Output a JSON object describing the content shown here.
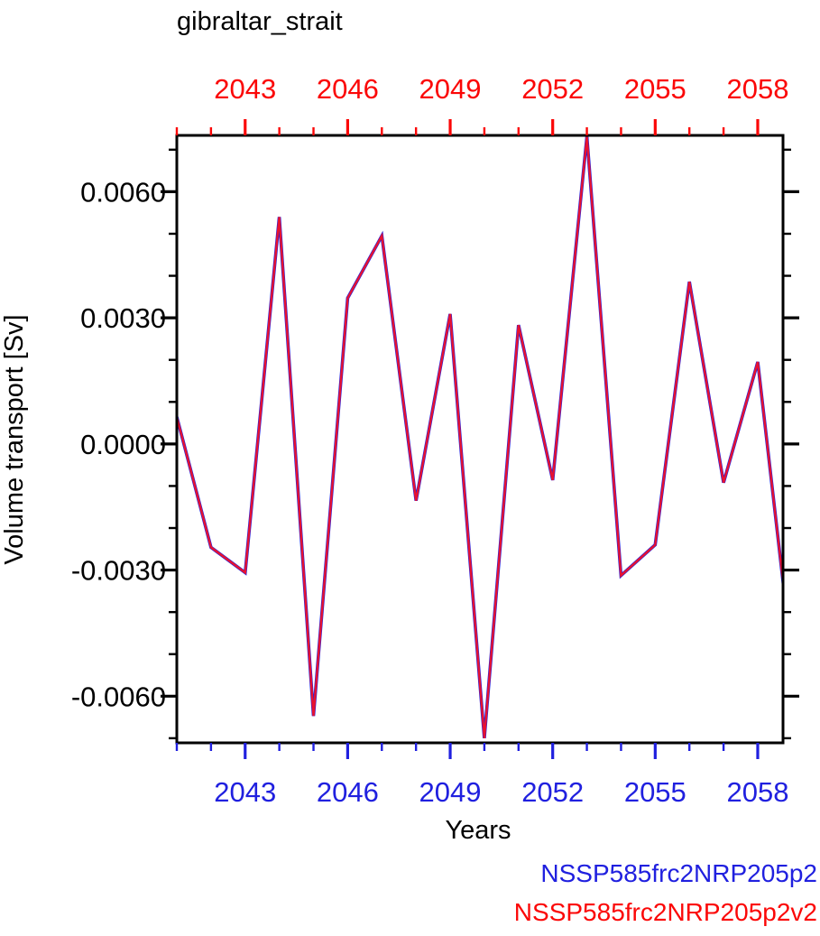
{
  "chart_data": {
    "type": "line",
    "title": "gibraltar_strait",
    "xlabel": "Years",
    "ylabel": "Volume transport [Sv]",
    "x": [
      2041,
      2042,
      2043,
      2044,
      2045,
      2046,
      2047,
      2048,
      2049,
      2050,
      2051,
      2052,
      2053,
      2054,
      2055,
      2056,
      2057,
      2058,
      2059
    ],
    "series": [
      {
        "name": "NSSP585frc2NRP205p2",
        "color": "#2020df",
        "values": [
          0.00064,
          -0.00246,
          -0.00306,
          0.0054,
          -0.00647,
          0.00347,
          0.00495,
          -0.00135,
          0.00309,
          -0.007,
          0.00283,
          -0.00086,
          0.00731,
          -0.00313,
          -0.0024,
          0.00386,
          -0.00092,
          0.00195,
          -0.0051
        ]
      },
      {
        "name": "NSSP585frc2NRP205p2v2",
        "color": "#e81230",
        "values": [
          0.00064,
          -0.00246,
          -0.00306,
          0.0054,
          -0.00647,
          0.00347,
          0.00495,
          -0.00135,
          0.00309,
          -0.007,
          0.00283,
          -0.00086,
          0.00731,
          -0.00313,
          -0.0024,
          0.00386,
          -0.00092,
          0.00195,
          -0.0051
        ]
      }
    ],
    "xlim": [
      2041,
      2058.74
    ],
    "ylim": [
      -0.00711,
      0.00734
    ],
    "x_major_ticks": [
      2043,
      2046,
      2049,
      2052,
      2055,
      2058
    ],
    "x_major_labels": [
      "2043",
      "2046",
      "2049",
      "2052",
      "2055",
      "2058"
    ],
    "x_minor_step": 1,
    "y_major_ticks": [
      0.006,
      0.003,
      0,
      -0.003,
      -0.006
    ],
    "y_major_labels": [
      "0.0060",
      "0.0030",
      "0.0000",
      "-0.0030",
      "-0.0060"
    ],
    "y_minor_step": 0.001,
    "grid": false,
    "legend_position": "bottom-right",
    "axis_colors": {
      "top": "#fb0707",
      "bottom": "#2020df",
      "left": "#000000",
      "right": "#000000",
      "frame": "#000000"
    },
    "tick_label_colors": {
      "top": "#fb0707",
      "bottom": "#2020df",
      "left": "#000000"
    }
  },
  "legend": [
    {
      "label": "NSSP585frc2NRP205p2",
      "color": "#2020df"
    },
    {
      "label": "NSSP585frc2NRP205p2v2",
      "color": "#fb0707"
    }
  ]
}
